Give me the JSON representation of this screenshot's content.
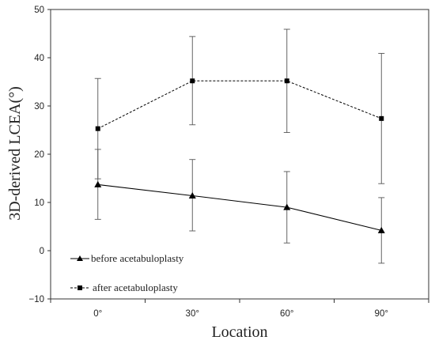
{
  "chart_data": {
    "type": "line",
    "title": "",
    "xlabel": "Location",
    "ylabel": "3D-derived LCEA(°)",
    "categories": [
      "0°",
      "30°",
      "60°",
      "90°"
    ],
    "ylim": [
      -10,
      50
    ],
    "yticks": [
      -10,
      0,
      10,
      20,
      30,
      40,
      50
    ],
    "ytick_labels": [
      "−10",
      "0",
      "10",
      "20",
      "30",
      "40",
      "50"
    ],
    "grid": false,
    "legend_position": "bottom-left",
    "series": [
      {
        "name": "before acetabuloplasty",
        "marker": "triangle",
        "line_style": "solid",
        "color": "#000000",
        "values": [
          13.7,
          11.4,
          9.0,
          4.2
        ],
        "error_low": [
          6.5,
          4.1,
          1.6,
          -2.6
        ],
        "error_high": [
          21.0,
          18.9,
          16.4,
          11.0
        ]
      },
      {
        "name": "after acetabuloplasty",
        "marker": "square",
        "line_style": "dashed",
        "color": "#000000",
        "values": [
          25.3,
          35.2,
          35.2,
          27.4
        ],
        "error_low": [
          14.9,
          26.1,
          24.5,
          13.9
        ],
        "error_high": [
          35.7,
          44.4,
          45.9,
          40.9
        ]
      }
    ]
  }
}
